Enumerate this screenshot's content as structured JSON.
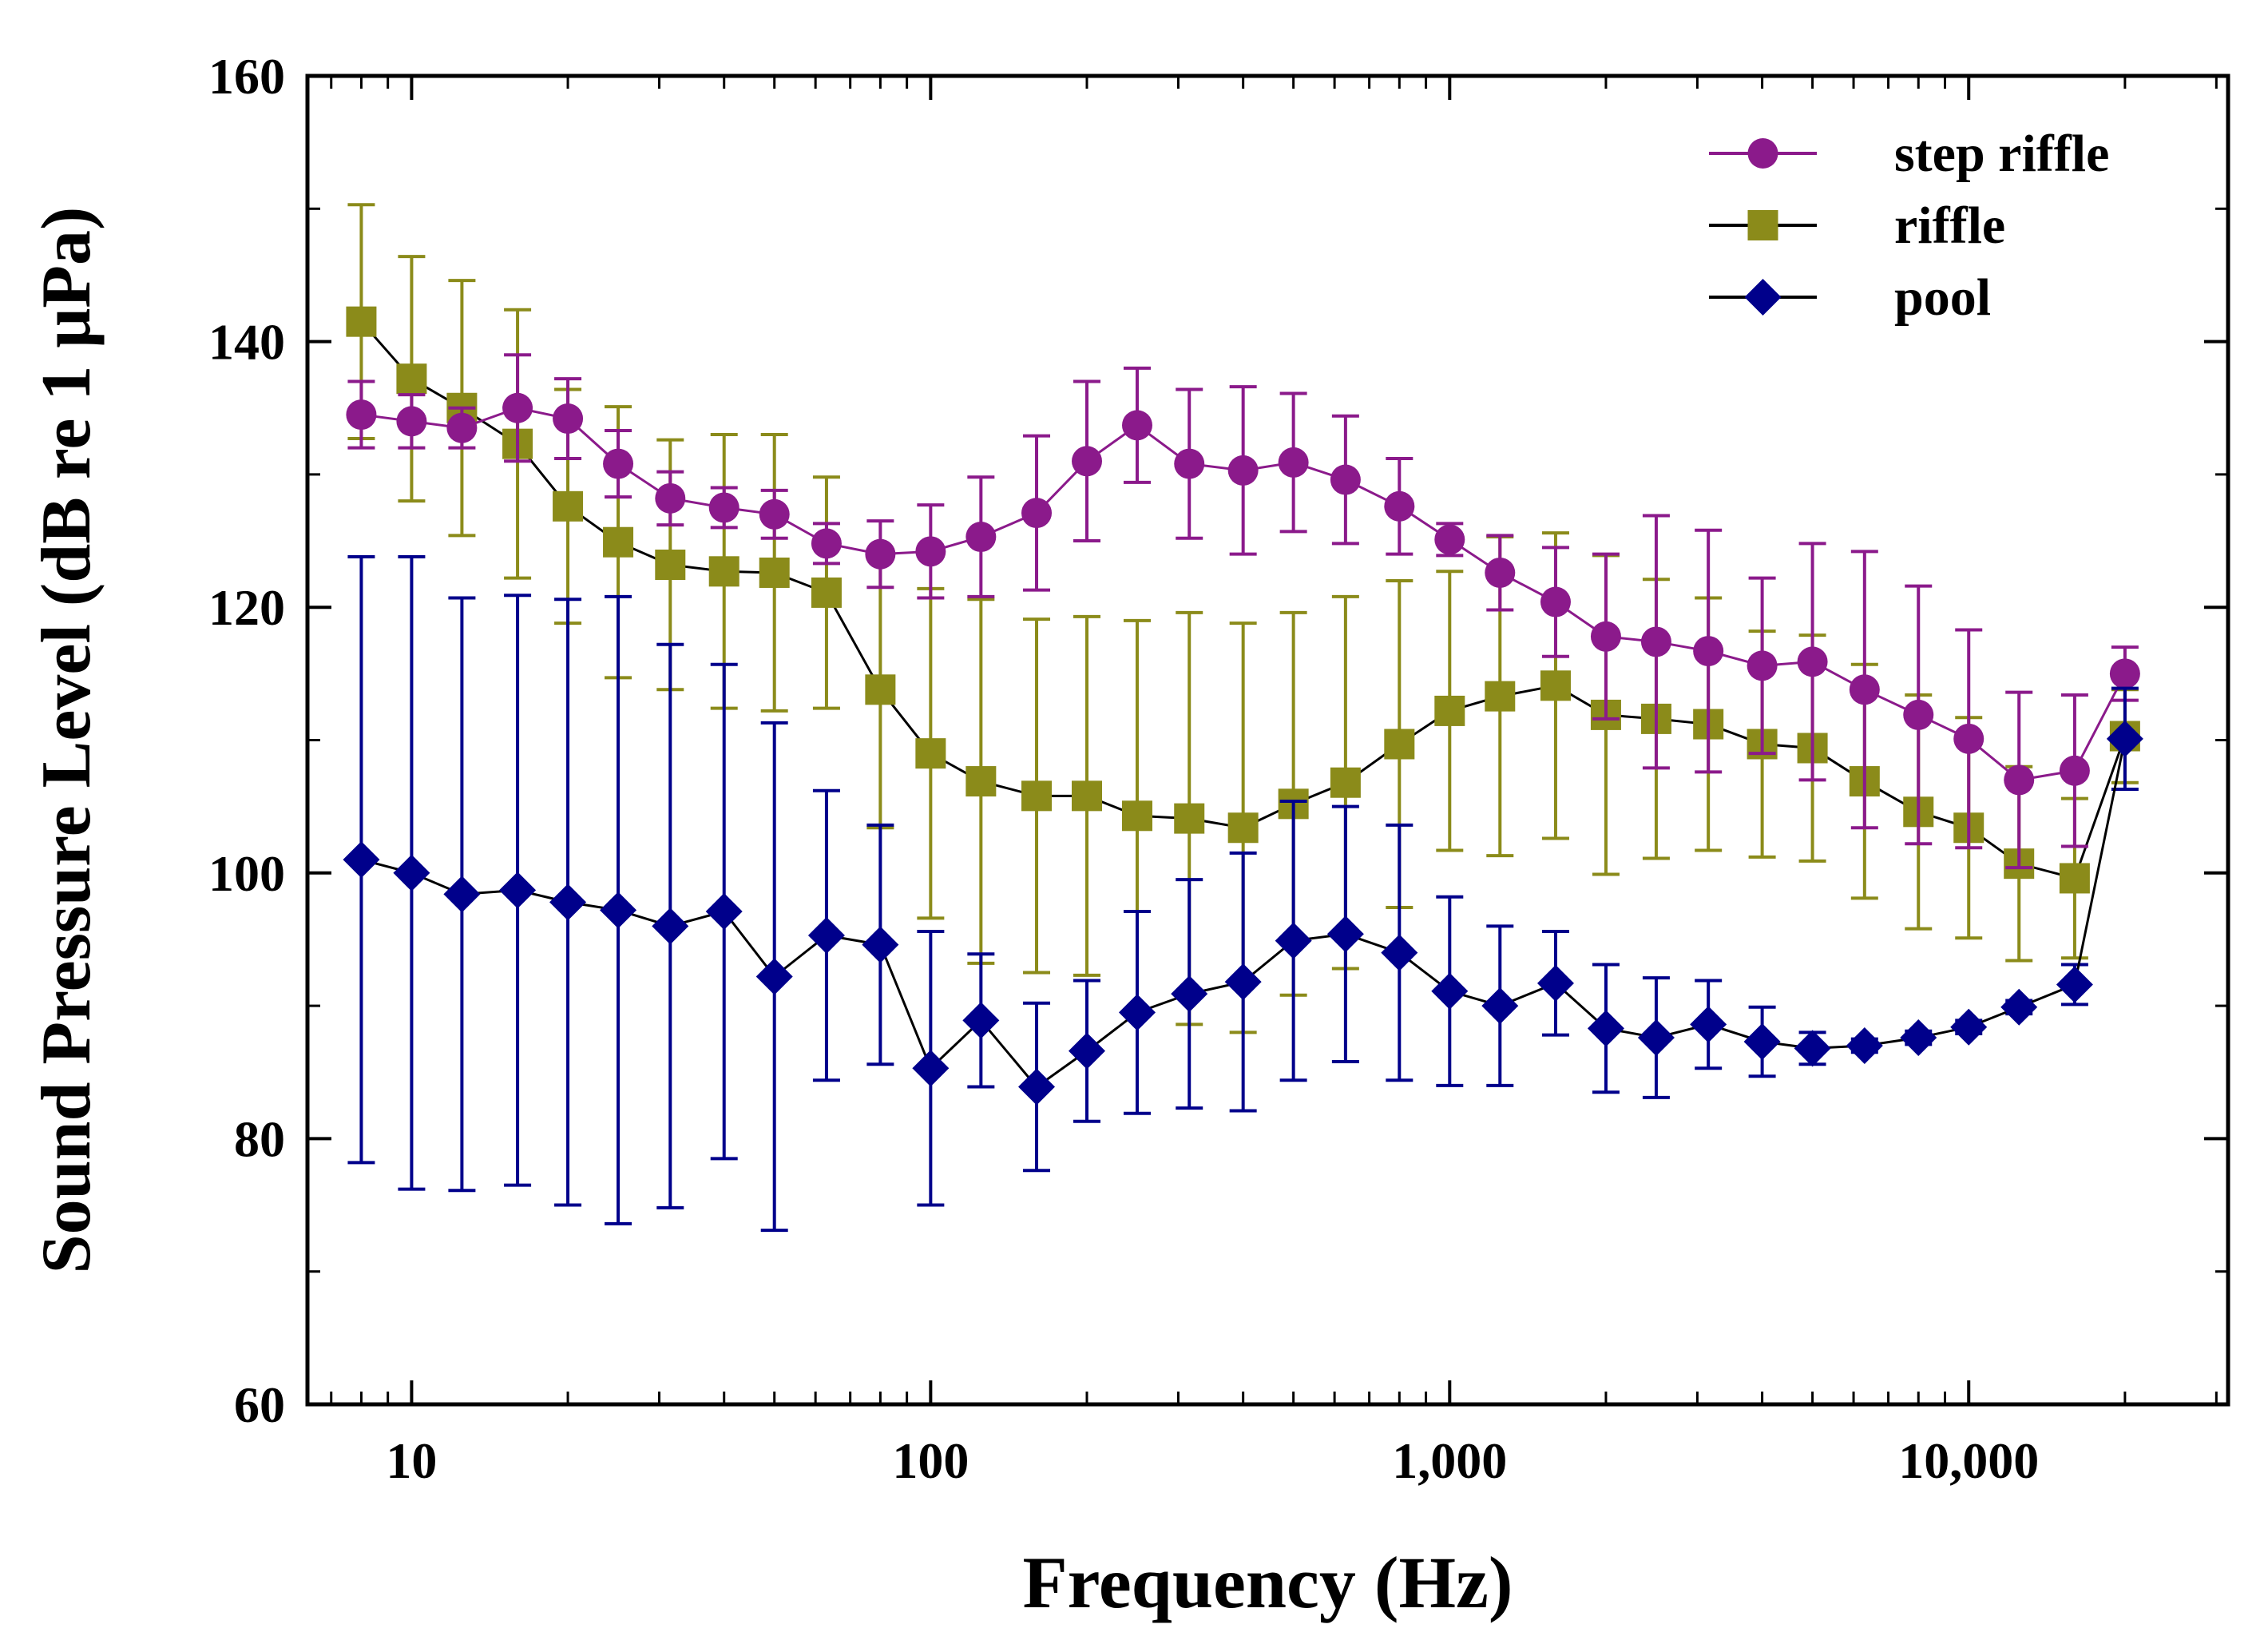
{
  "chart_data": {
    "type": "line",
    "title": "",
    "xlabel": "Frequency (Hz)",
    "ylabel": "Sound Pressure Level (dB re 1 μPa)",
    "xscale": "log",
    "xlim": [
      6.3,
      31600
    ],
    "ylim": [
      60,
      160
    ],
    "xticks": [
      {
        "value": 10,
        "label": "10"
      },
      {
        "value": 100,
        "label": "100"
      },
      {
        "value": 1000,
        "label": "1,000"
      },
      {
        "value": 10000,
        "label": "10,000"
      }
    ],
    "yticks": [
      {
        "value": 60,
        "label": "60"
      },
      {
        "value": 80,
        "label": "80"
      },
      {
        "value": 100,
        "label": "100"
      },
      {
        "value": 120,
        "label": "120"
      },
      {
        "value": 140,
        "label": "140"
      },
      {
        "value": 160,
        "label": "160"
      }
    ],
    "legend_position": "top-right",
    "x": [
      8,
      10,
      12.5,
      16,
      20,
      25,
      31.5,
      40,
      50,
      63,
      80,
      100,
      125,
      160,
      200,
      250,
      315,
      400,
      500,
      630,
      800,
      1000,
      1250,
      1600,
      2000,
      2500,
      3150,
      4000,
      5000,
      6300,
      8000,
      10000,
      12500,
      16000,
      20000
    ],
    "series": [
      {
        "name": "step riffle",
        "color": "#8b1a8b",
        "marker": "circle",
        "line_color": "#8b1a8b",
        "values": [
          134.5,
          134,
          133.5,
          135,
          134.2,
          130.8,
          128.2,
          127.5,
          127,
          124.8,
          124,
          124.2,
          125.3,
          127.1,
          131,
          133.7,
          130.8,
          130.3,
          130.9,
          129.6,
          127.6,
          125.1,
          122.6,
          120.4,
          117.8,
          117.4,
          116.7,
          115.6,
          115.9,
          113.8,
          111.9,
          110.1,
          107,
          107.7,
          115
        ],
        "error": [
          2.5,
          2,
          1.5,
          4,
          3,
          2.5,
          2,
          1.5,
          1.8,
          1.5,
          2.5,
          3.5,
          4.5,
          5.8,
          6,
          4.3,
          5.6,
          6.3,
          5.2,
          4.8,
          3.6,
          1.2,
          2.8,
          4.1,
          6.2,
          9.5,
          9.1,
          6.6,
          8.9,
          10.4,
          9.7,
          8.2,
          6.6,
          5.7,
          2
        ]
      },
      {
        "name": "riffle",
        "color": "#8b8b1a",
        "marker": "square",
        "line_color": "#000000",
        "values": [
          141.5,
          137.2,
          135,
          132.3,
          127.6,
          124.9,
          123.2,
          122.7,
          122.6,
          121.1,
          113.8,
          109,
          106.9,
          105.8,
          105.8,
          104.3,
          104.1,
          103.4,
          105.2,
          106.8,
          109.7,
          112.2,
          113.3,
          114.1,
          111.9,
          111.6,
          111.2,
          109.7,
          109.4,
          106.9,
          104.6,
          103.4,
          100.7,
          99.6,
          110.3
        ],
        "error": [
          8.8,
          9.2,
          9.6,
          10.1,
          8.8,
          10.2,
          9.4,
          10.3,
          10.4,
          8.7,
          10.4,
          12.4,
          13.7,
          13.3,
          13.5,
          14.7,
          15.5,
          15.4,
          14.4,
          14,
          12.3,
          10.5,
          12,
          11.5,
          12,
          10.5,
          9.5,
          8.5,
          8.5,
          8.8,
          8.8,
          8.3,
          7.3,
          6,
          3.5
        ]
      },
      {
        "name": "pool",
        "color": "#00008b",
        "marker": "diamond",
        "line_color": "#000000",
        "values": [
          101,
          100,
          98.4,
          98.7,
          97.8,
          97.2,
          96,
          97.1,
          92.2,
          95.3,
          94.6,
          85.3,
          88.9,
          83.9,
          86.6,
          89.5,
          90.9,
          91.8,
          94.9,
          95.4,
          94,
          91.1,
          90,
          91.7,
          88.3,
          87.6,
          88.6,
          87.3,
          86.8,
          87,
          87.6,
          88.4,
          89.9,
          91.6,
          110.1
        ],
        "error": [
          22.8,
          23.8,
          22.3,
          22.2,
          22.8,
          23.6,
          21.2,
          18.6,
          19.1,
          10.9,
          9,
          10.3,
          5,
          6.3,
          5.3,
          7.6,
          8.6,
          9.7,
          10.5,
          9.6,
          9.6,
          7.1,
          6,
          3.9,
          4.8,
          4.5,
          3.3,
          2.6,
          1.2,
          0.5,
          0.5,
          0.5,
          0.5,
          1.5,
          3.8
        ]
      }
    ]
  }
}
